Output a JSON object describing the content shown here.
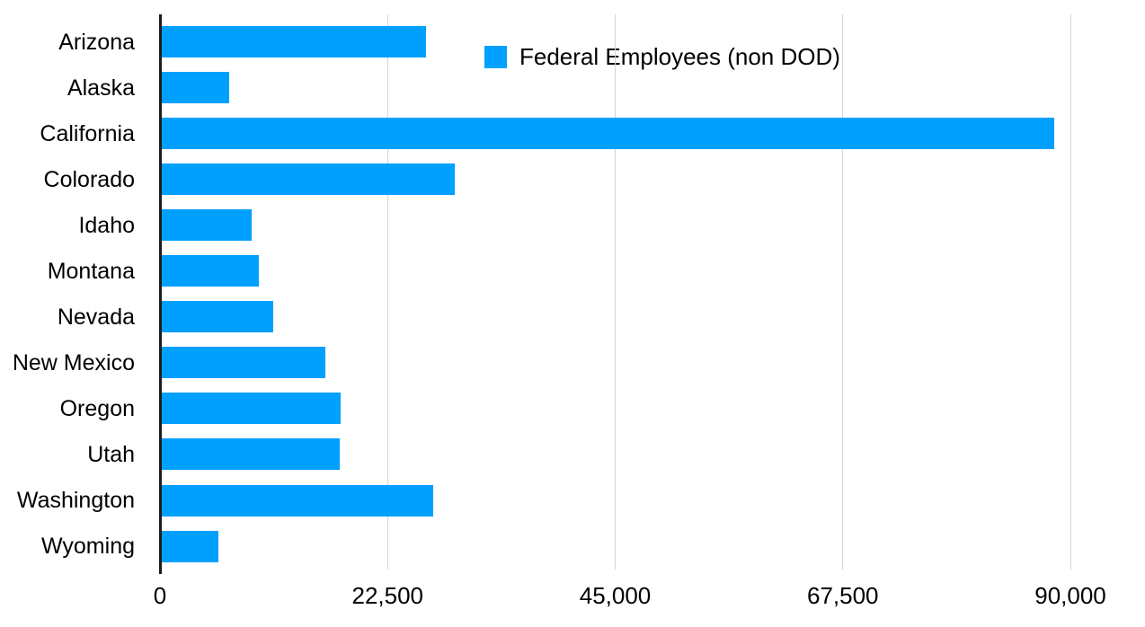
{
  "chart_data": {
    "type": "bar",
    "orientation": "horizontal",
    "title": "",
    "legend": {
      "label": "Federal Employees (non DOD)",
      "position": "top-center"
    },
    "categories": [
      "Arizona",
      "Alaska",
      "California",
      "Colorado",
      "Idaho",
      "Montana",
      "Nevada",
      "New Mexico",
      "Oregon",
      "Utah",
      "Washington",
      "Wyoming"
    ],
    "values": [
      26200,
      6700,
      88300,
      29050,
      8900,
      9600,
      11100,
      16250,
      17750,
      17600,
      26850,
      5650
    ],
    "xlabel": "",
    "ylabel": "",
    "xlim": [
      0,
      90000
    ],
    "x_ticks": [
      {
        "value": 0,
        "label": "0"
      },
      {
        "value": 22500,
        "label": "22,500"
      },
      {
        "value": 45000,
        "label": "45,000"
      },
      {
        "value": 67500,
        "label": "67,500"
      },
      {
        "value": 90000,
        "label": "90,000"
      }
    ],
    "grid": true,
    "colors": {
      "bar": "#00A0FF",
      "gridline": "#D4D4D4",
      "axis": "#1C1C1E",
      "text": "#000000"
    }
  }
}
